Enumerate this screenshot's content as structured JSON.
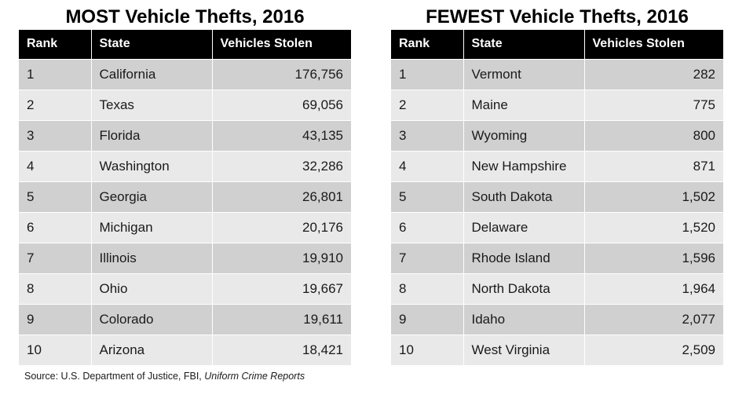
{
  "chart_data": [
    {
      "type": "table",
      "title": "MOST Vehicle Thefts, 2016",
      "columns": [
        "Rank",
        "State",
        "Vehicles Stolen"
      ],
      "rows": [
        {
          "rank": "1",
          "state": "California",
          "value": "176,756"
        },
        {
          "rank": "2",
          "state": "Texas",
          "value": "69,056"
        },
        {
          "rank": "3",
          "state": "Florida",
          "value": "43,135"
        },
        {
          "rank": "4",
          "state": "Washington",
          "value": "32,286"
        },
        {
          "rank": "5",
          "state": "Georgia",
          "value": "26,801"
        },
        {
          "rank": "6",
          "state": "Michigan",
          "value": "20,176"
        },
        {
          "rank": "7",
          "state": "Illinois",
          "value": "19,910"
        },
        {
          "rank": "8",
          "state": "Ohio",
          "value": "19,667"
        },
        {
          "rank": "9",
          "state": "Colorado",
          "value": "19,611"
        },
        {
          "rank": "10",
          "state": "Arizona",
          "value": "18,421"
        }
      ]
    },
    {
      "type": "table",
      "title": "FEWEST Vehicle Thefts, 2016",
      "columns": [
        "Rank",
        "State",
        "Vehicles Stolen"
      ],
      "rows": [
        {
          "rank": "1",
          "state": "Vermont",
          "value": "282"
        },
        {
          "rank": "2",
          "state": "Maine",
          "value": "775"
        },
        {
          "rank": "3",
          "state": "Wyoming",
          "value": "800"
        },
        {
          "rank": "4",
          "state": "New Hampshire",
          "value": "871"
        },
        {
          "rank": "5",
          "state": "South Dakota",
          "value": "1,502"
        },
        {
          "rank": "6",
          "state": "Delaware",
          "value": "1,520"
        },
        {
          "rank": "7",
          "state": "Rhode Island",
          "value": "1,596"
        },
        {
          "rank": "8",
          "state": "North Dakota",
          "value": "1,964"
        },
        {
          "rank": "9",
          "state": "Idaho",
          "value": "2,077"
        },
        {
          "rank": "10",
          "state": "West Virginia",
          "value": "2,509"
        }
      ]
    }
  ],
  "source": {
    "prefix": "Source: U.S. Department of Justice, FBI, ",
    "publication": "Uniform Crime Reports"
  }
}
